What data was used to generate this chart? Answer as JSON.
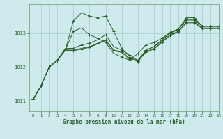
{
  "xlabel": "Graphe pression niveau de la mer (hPa)",
  "bg_color": "#ceeaec",
  "grid_color": "#aacfd2",
  "line_color": "#2a5e2a",
  "xlim": [
    -0.5,
    23
  ],
  "ylim": [
    1010.7,
    1013.85
  ],
  "yticks": [
    1011,
    1012,
    1013
  ],
  "xticks": [
    0,
    1,
    2,
    3,
    4,
    5,
    6,
    7,
    8,
    9,
    10,
    11,
    12,
    13,
    14,
    15,
    16,
    17,
    18,
    19,
    20,
    21,
    22,
    23
  ],
  "series": [
    [
      1011.05,
      1011.45,
      1012.0,
      1012.2,
      1012.5,
      1013.35,
      1013.6,
      1013.5,
      1013.45,
      1013.5,
      1013.05,
      1012.55,
      1012.3,
      1012.15,
      1012.5,
      1012.6,
      1012.8,
      1013.0,
      1013.1,
      1013.45,
      1013.45,
      1013.2,
      1013.2,
      1013.2
    ],
    [
      1011.05,
      1011.45,
      1012.0,
      1012.2,
      1012.55,
      1012.55,
      1012.65,
      1012.7,
      1012.8,
      1012.95,
      1012.6,
      1012.5,
      1012.35,
      1012.2,
      1012.5,
      1012.6,
      1012.8,
      1013.0,
      1013.1,
      1013.4,
      1013.4,
      1013.2,
      1013.2,
      1013.2
    ],
    [
      1011.05,
      1011.45,
      1012.0,
      1012.2,
      1012.5,
      1012.5,
      1012.55,
      1012.6,
      1012.7,
      1012.8,
      1012.5,
      1012.45,
      1012.25,
      1012.2,
      1012.45,
      1012.55,
      1012.75,
      1012.95,
      1013.05,
      1013.32,
      1013.32,
      1013.15,
      1013.15,
      1013.15
    ],
    [
      1011.05,
      1011.45,
      1012.0,
      1012.2,
      1012.5,
      1012.48,
      1012.53,
      1012.58,
      1012.68,
      1012.78,
      1012.48,
      1012.43,
      1012.23,
      1012.18,
      1012.43,
      1012.53,
      1012.73,
      1012.93,
      1013.03,
      1013.3,
      1013.3,
      1013.13,
      1013.13,
      1013.13
    ],
    [
      1011.05,
      1011.45,
      1012.0,
      1012.2,
      1012.5,
      1013.05,
      1013.15,
      1012.95,
      1012.85,
      1012.72,
      1012.4,
      1012.3,
      1012.2,
      1012.4,
      1012.65,
      1012.72,
      1012.85,
      1013.02,
      1013.12,
      1013.38,
      1013.38,
      1013.2,
      1013.2,
      1013.2
    ]
  ]
}
